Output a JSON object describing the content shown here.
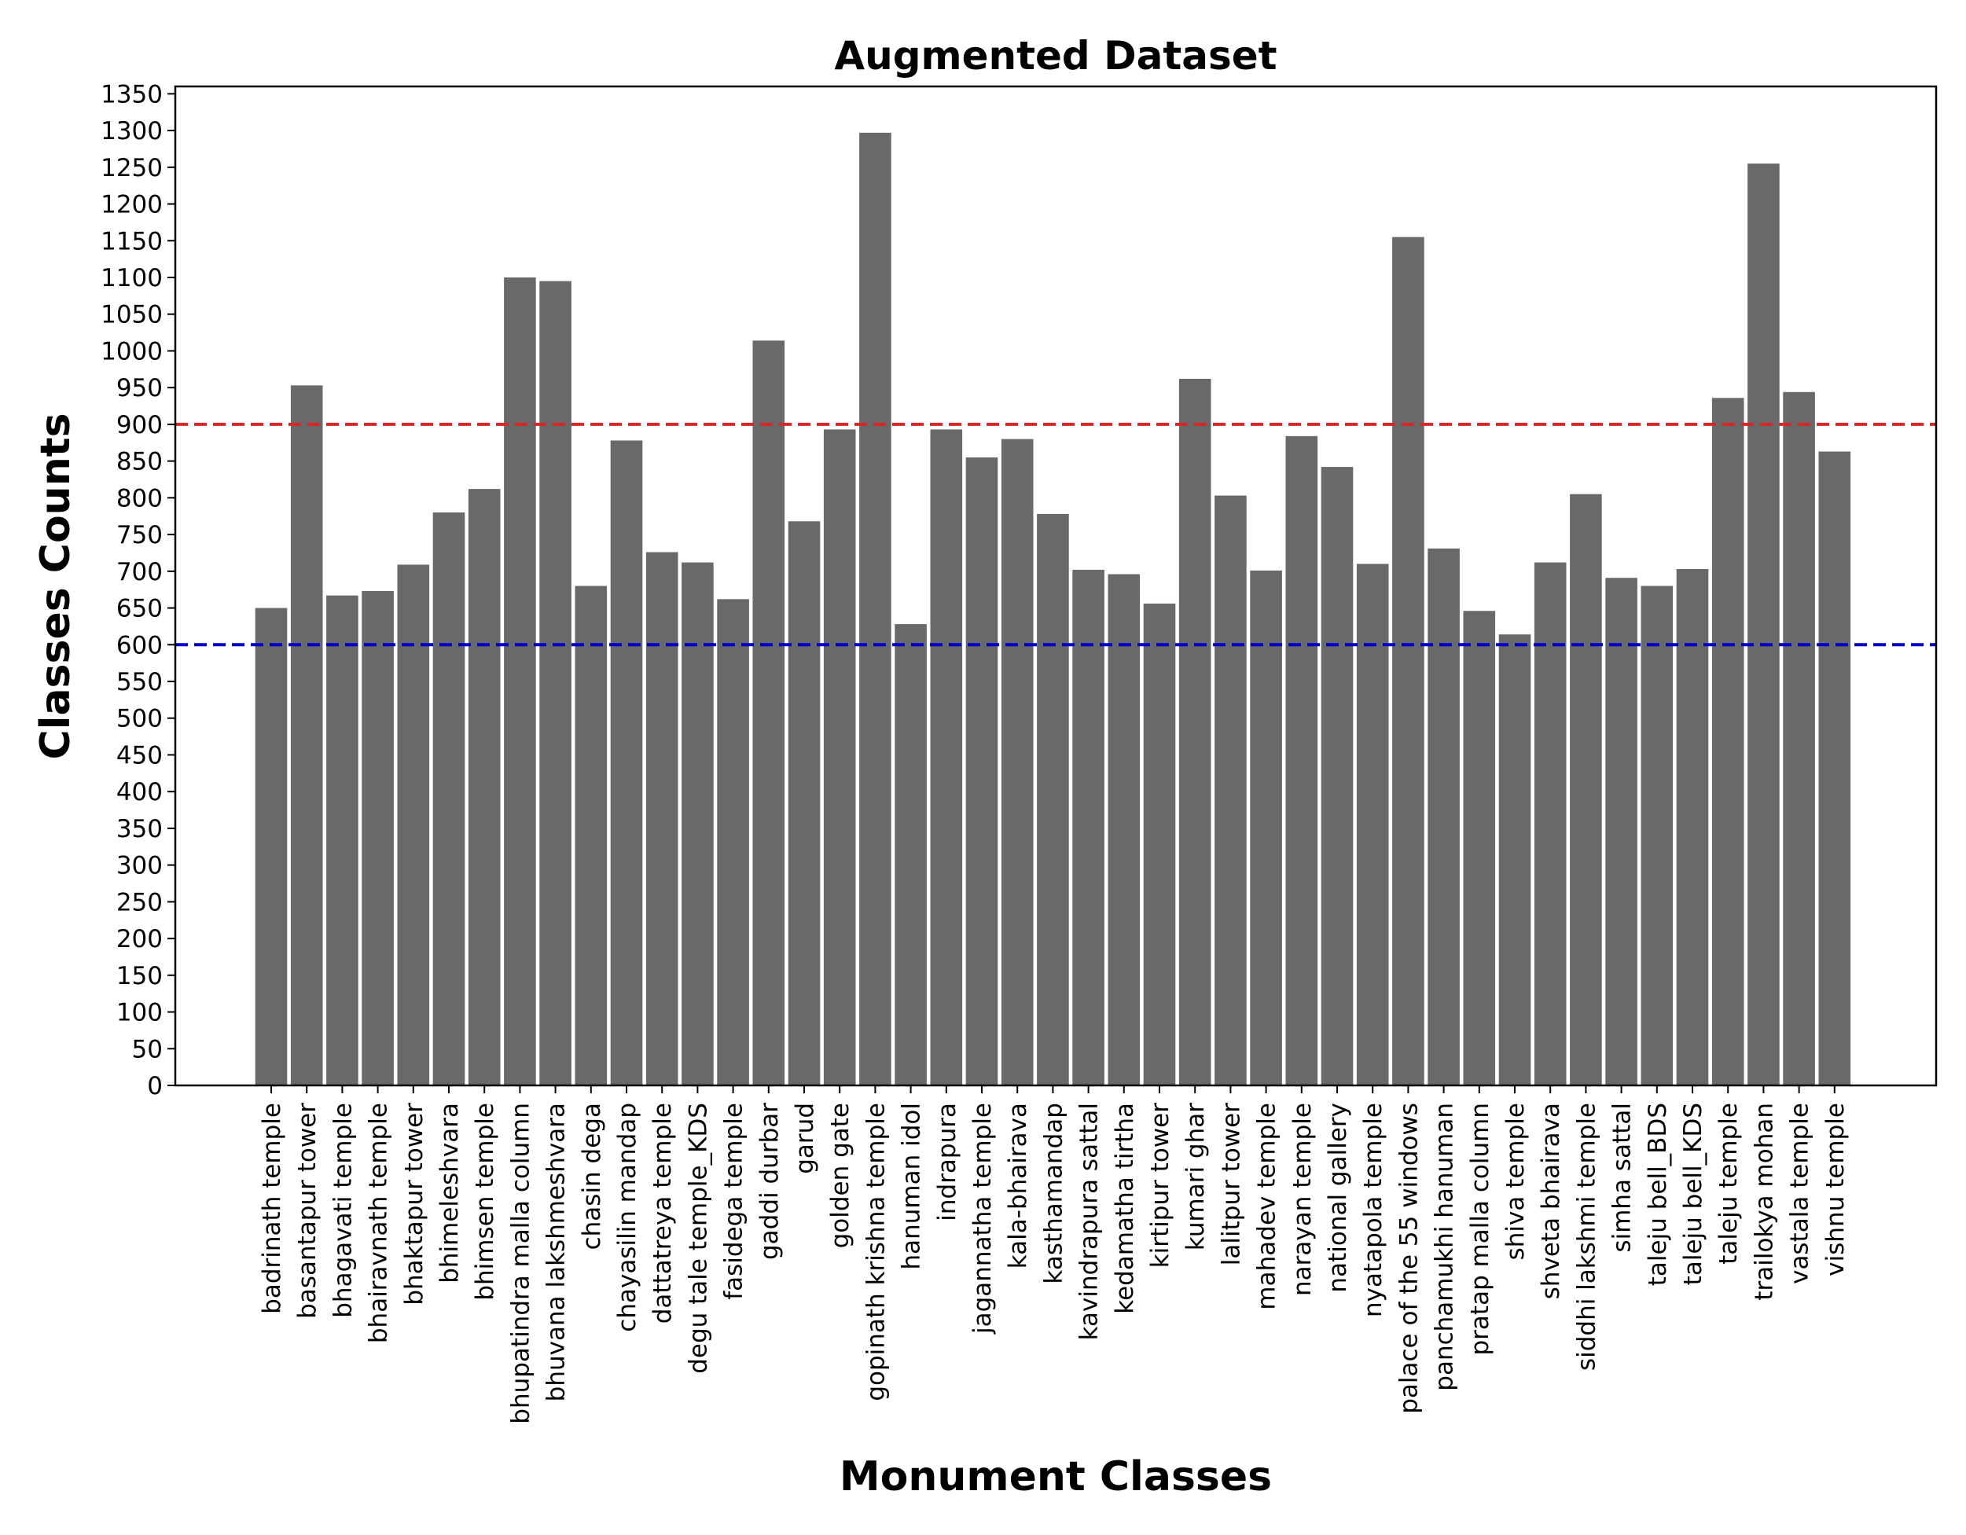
{
  "chart_data": {
    "type": "bar",
    "title": "Augmented Dataset",
    "xlabel": "Monument Classes",
    "ylabel": "Classes Counts",
    "ylim": [
      0,
      1360
    ],
    "yticks": [
      0,
      50,
      100,
      150,
      200,
      250,
      300,
      350,
      400,
      450,
      500,
      550,
      600,
      650,
      700,
      750,
      800,
      850,
      900,
      950,
      1000,
      1050,
      1100,
      1150,
      1200,
      1250,
      1300,
      1350
    ],
    "grid": false,
    "bar_color": "#696969",
    "categories": [
      "badrinath temple",
      "basantapur tower",
      "bhagavati temple",
      "bhairavnath temple",
      "bhaktapur tower",
      "bhimeleshvara",
      "bhimsen temple",
      "bhupatindra malla column",
      "bhuvana lakshmeshvara",
      "chasin dega",
      "chayasilin mandap",
      "dattatreya temple",
      "degu tale temple_KDS",
      "fasidega temple",
      "gaddi durbar",
      "garud",
      "golden gate",
      "gopinath krishna temple",
      "hanuman idol",
      "indrapura",
      "jagannatha temple",
      "kala-bhairava",
      "kasthamandap",
      "kavindrapura sattal",
      "kedamatha tirtha",
      "kirtipur tower",
      "kumari ghar",
      "lalitpur tower",
      "mahadev temple",
      "narayan temple",
      "national gallery",
      "nyatapola temple",
      "palace of the 55 windows",
      "panchamukhi hanuman",
      "pratap malla column",
      "shiva temple",
      "shveta bhairava",
      "siddhi lakshmi temple",
      "simha sattal",
      "taleju bell_BDS",
      "taleju bell_KDS",
      "taleju temple",
      "trailokya mohan",
      "vastala temple",
      "vishnu temple"
    ],
    "values": [
      650,
      953,
      667,
      673,
      709,
      780,
      812,
      1100,
      1095,
      680,
      878,
      726,
      712,
      662,
      1014,
      768,
      893,
      1297,
      628,
      893,
      855,
      880,
      778,
      702,
      696,
      656,
      962,
      803,
      701,
      884,
      842,
      710,
      1155,
      731,
      646,
      614,
      712,
      805,
      691,
      680,
      703,
      936,
      1255,
      944,
      863
    ],
    "reference_lines": [
      {
        "value": 900,
        "color": "#d62728",
        "style": "dashed"
      },
      {
        "value": 600,
        "color": "#0000cc",
        "style": "dashed"
      }
    ]
  }
}
